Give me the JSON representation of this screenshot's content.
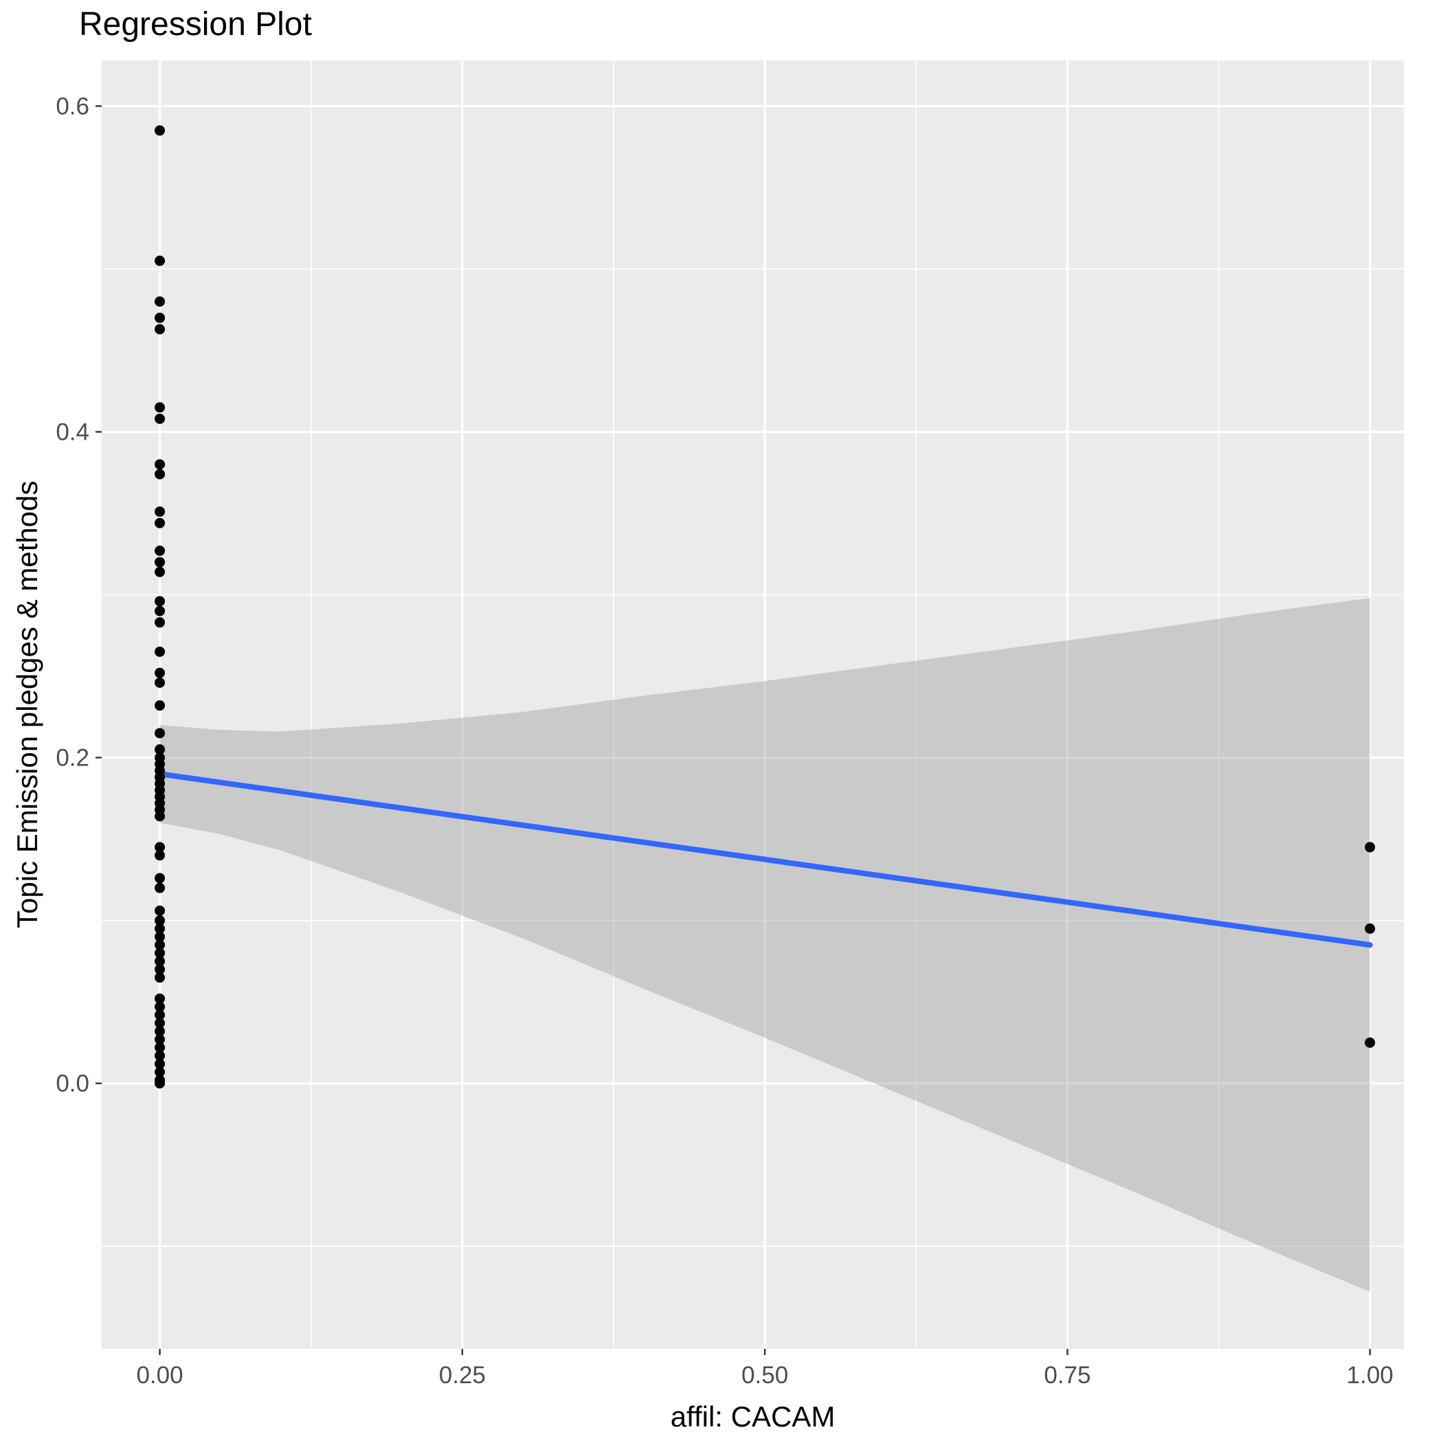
{
  "chart_data": {
    "type": "scatter",
    "title": "Regression Plot",
    "xlabel": "affil: CACAM",
    "ylabel": "Topic Emission pledges & methods",
    "xlim": [
      -0.048,
      1.028
    ],
    "ylim": [
      -0.163,
      0.628
    ],
    "grid": true,
    "legend": "none",
    "x_ticks": {
      "values": [
        0.0,
        0.25,
        0.5,
        0.75,
        1.0
      ],
      "labels": [
        "0.00",
        "0.25",
        "0.50",
        "0.75",
        "1.00"
      ]
    },
    "y_ticks": {
      "values": [
        0.0,
        0.2,
        0.4,
        0.6
      ],
      "labels": [
        "0.0",
        "0.2",
        "0.4",
        "0.6"
      ]
    },
    "x_minor": [
      0.125,
      0.375,
      0.625,
      0.875
    ],
    "y_minor": [
      -0.1,
      0.1,
      0.3,
      0.5
    ],
    "colors": {
      "panel": "#EBEBEB",
      "grid": "#FFFFFF",
      "ribbon": "#999999",
      "ribbon_opacity": 0.4,
      "line": "#3366FF",
      "point": "#000000",
      "tick_text": "#4D4D4D",
      "tick_mark": "#333333"
    },
    "points": [
      [
        0,
        0.585
      ],
      [
        0,
        0.505
      ],
      [
        0,
        0.48
      ],
      [
        0,
        0.47
      ],
      [
        0,
        0.463
      ],
      [
        0,
        0.415
      ],
      [
        0,
        0.408
      ],
      [
        0,
        0.38
      ],
      [
        0,
        0.374
      ],
      [
        0,
        0.351
      ],
      [
        0,
        0.344
      ],
      [
        0,
        0.327
      ],
      [
        0,
        0.32
      ],
      [
        0,
        0.314
      ],
      [
        0,
        0.296
      ],
      [
        0,
        0.29
      ],
      [
        0,
        0.283
      ],
      [
        0,
        0.265
      ],
      [
        0,
        0.252
      ],
      [
        0,
        0.246
      ],
      [
        0,
        0.232
      ],
      [
        0,
        0.215
      ],
      [
        0,
        0.205
      ],
      [
        0,
        0.2
      ],
      [
        0,
        0.196
      ],
      [
        0,
        0.192
      ],
      [
        0,
        0.188
      ],
      [
        0,
        0.184
      ],
      [
        0,
        0.18
      ],
      [
        0,
        0.176
      ],
      [
        0,
        0.172
      ],
      [
        0,
        0.168
      ],
      [
        0,
        0.164
      ],
      [
        0,
        0.145
      ],
      [
        0,
        0.14
      ],
      [
        0,
        0.126
      ],
      [
        0,
        0.12
      ],
      [
        0,
        0.106
      ],
      [
        0,
        0.1
      ],
      [
        0,
        0.095
      ],
      [
        0,
        0.09
      ],
      [
        0,
        0.085
      ],
      [
        0,
        0.08
      ],
      [
        0,
        0.075
      ],
      [
        0,
        0.07
      ],
      [
        0,
        0.065
      ],
      [
        0,
        0.052
      ],
      [
        0,
        0.047
      ],
      [
        0,
        0.042
      ],
      [
        0,
        0.037
      ],
      [
        0,
        0.032
      ],
      [
        0,
        0.027
      ],
      [
        0,
        0.022
      ],
      [
        0,
        0.017
      ],
      [
        0,
        0.012
      ],
      [
        0,
        0.007
      ],
      [
        0,
        0.002
      ],
      [
        0,
        0.0
      ],
      [
        1,
        0.145
      ],
      [
        1,
        0.095
      ],
      [
        1,
        0.025
      ]
    ],
    "regression": {
      "line": {
        "x": [
          0,
          1
        ],
        "y": [
          0.19,
          0.085
        ]
      },
      "ribbon": {
        "x": [
          0,
          0.05,
          0.1,
          0.2,
          0.3,
          0.4,
          0.5,
          0.6,
          0.7,
          0.8,
          0.9,
          1.0
        ],
        "upper": [
          0.22,
          0.217,
          0.216,
          0.221,
          0.228,
          0.238,
          0.247,
          0.257,
          0.267,
          0.277,
          0.288,
          0.298
        ],
        "lower": [
          0.16,
          0.153,
          0.143,
          0.117,
          0.089,
          0.058,
          0.028,
          -0.003,
          -0.034,
          -0.065,
          -0.097,
          -0.128
        ]
      }
    }
  }
}
